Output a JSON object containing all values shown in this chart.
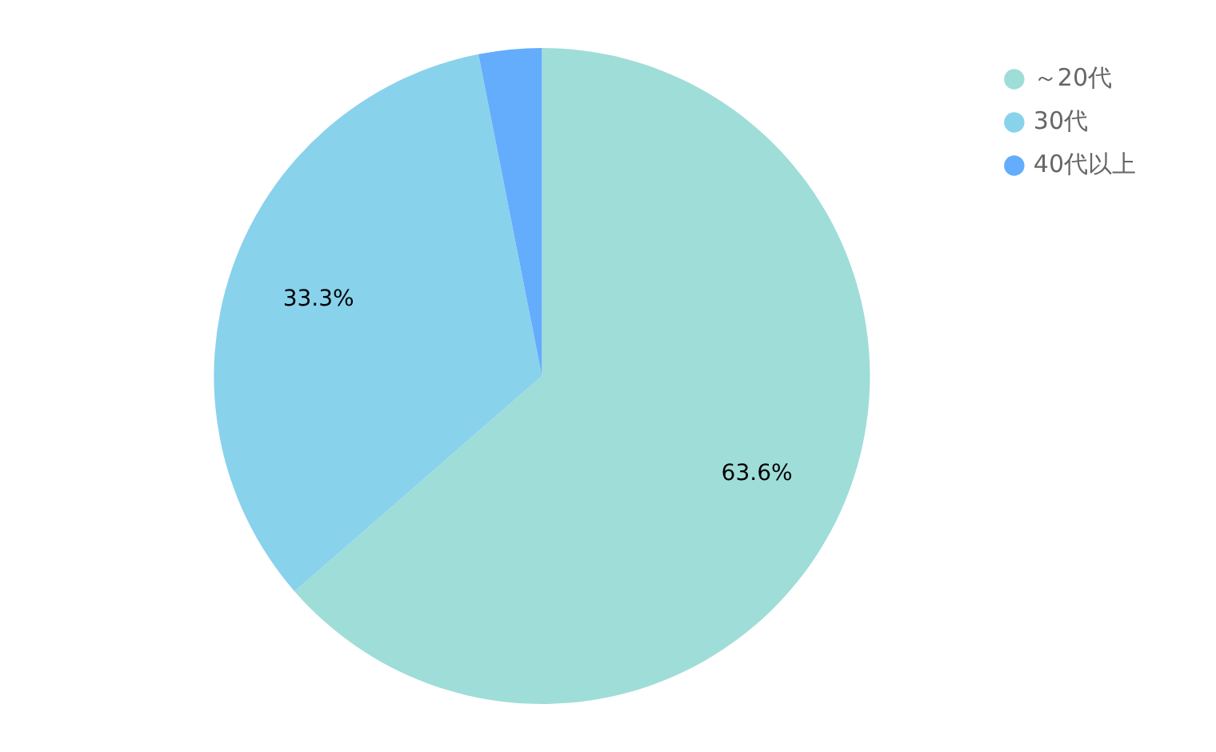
{
  "chart_data": {
    "type": "pie",
    "categories": [
      "～20代",
      "30代",
      "40代以上"
    ],
    "values": [
      63.6,
      33.3,
      3.1
    ],
    "value_labels": [
      "63.6%",
      "33.3%",
      null
    ],
    "colors": [
      "#9fddd8",
      "#88d2ec",
      "#64acfc"
    ],
    "legend": "top right"
  }
}
